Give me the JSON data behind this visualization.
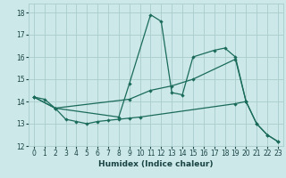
{
  "xlabel": "Humidex (Indice chaleur)",
  "background_color": "#cce8e8",
  "grid_color": "#aacccc",
  "line_color": "#1a6b5a",
  "xlim": [
    -0.5,
    23.5
  ],
  "ylim": [
    12,
    18.4
  ],
  "yticks": [
    12,
    13,
    14,
    15,
    16,
    17,
    18
  ],
  "xticks": [
    0,
    1,
    2,
    3,
    4,
    5,
    6,
    7,
    8,
    9,
    10,
    11,
    12,
    13,
    14,
    15,
    16,
    17,
    18,
    19,
    20,
    21,
    22,
    23
  ],
  "series": [
    {
      "comment": "Line 1: starts at 14.2 x=0, rises to spike at x=11 ~18, x=12 ~17.6, drops to ~14.4 at x=13, then 14.3 x=14, rises to 16 at x=15, dips to 14.4 at x=16(approx), 16.3 x=17, 16.4 x=18, drops to 16 x=19, 14 x=20",
      "x": [
        0,
        2,
        8,
        9,
        11,
        12,
        13,
        14,
        15,
        17,
        18,
        19,
        20
      ],
      "y": [
        14.2,
        13.7,
        13.3,
        14.8,
        17.9,
        17.6,
        14.4,
        14.3,
        16.0,
        16.3,
        16.4,
        16.0,
        14.0
      ]
    },
    {
      "x": [
        0,
        2,
        9,
        11,
        13,
        15,
        19,
        20,
        21,
        22,
        23
      ],
      "y": [
        14.2,
        13.7,
        14.1,
        14.5,
        14.7,
        15.0,
        15.9,
        14.0,
        13.0,
        12.5,
        12.2
      ]
    },
    {
      "x": [
        0,
        1,
        2,
        3,
        4,
        5,
        6,
        7,
        8,
        9,
        10,
        19,
        20,
        21,
        22,
        23
      ],
      "y": [
        14.2,
        14.1,
        13.7,
        13.2,
        13.1,
        13.0,
        13.1,
        13.15,
        13.2,
        13.25,
        13.3,
        13.9,
        14.0,
        13.0,
        12.5,
        12.2
      ]
    }
  ]
}
